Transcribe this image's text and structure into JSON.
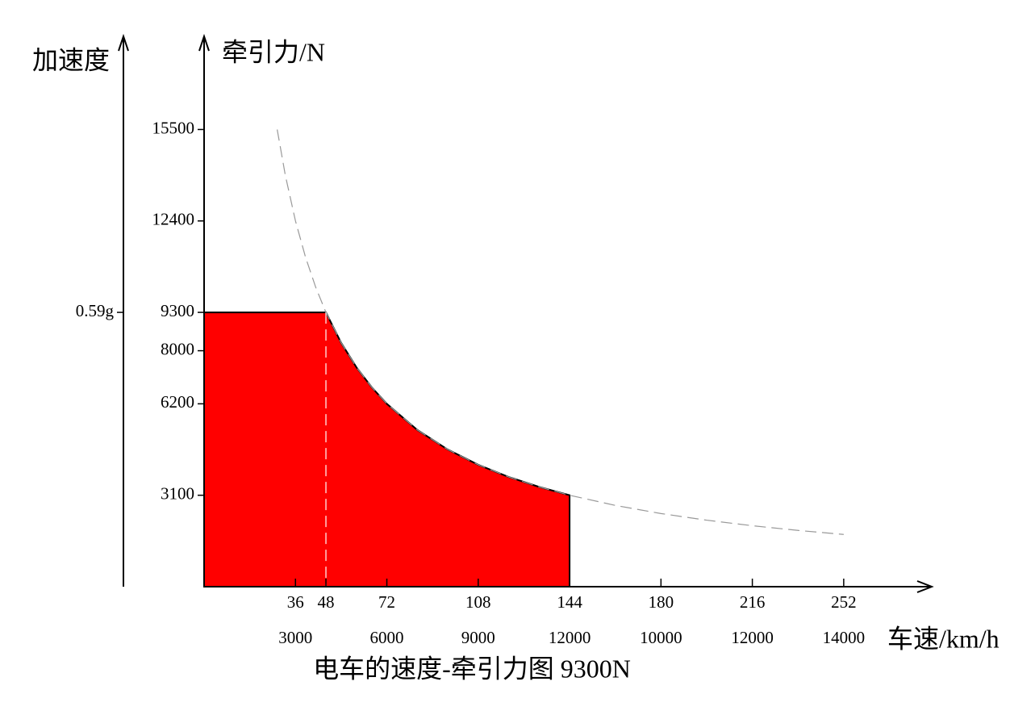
{
  "chart_data": {
    "type": "area",
    "title": "电车的速度-牵引力图 9300N",
    "x_label": "车速/km/h",
    "y_label": "牵引力/N",
    "y_left_label": "加速度",
    "y_left_ticks": [
      {
        "value": 9300,
        "label": "0.59g"
      }
    ],
    "xlim": [
      0,
      287
    ],
    "ylim": [
      0,
      18700
    ],
    "xticks": [
      36,
      48,
      72,
      108,
      144,
      180,
      216,
      252
    ],
    "xtick_sublabels": [
      3000,
      null,
      6000,
      9000,
      12000,
      10000,
      12000,
      14000
    ],
    "yticks": [
      3100,
      6200,
      8000,
      9300,
      12400,
      15500
    ],
    "area": {
      "color": "#ff0000",
      "x": [
        0,
        48,
        54,
        60,
        66,
        72,
        84,
        96,
        108,
        120,
        132,
        144
      ],
      "values": [
        9300,
        9300,
        8267,
        7440,
        6764,
        6200,
        5314,
        4650,
        4133,
        3720,
        3382,
        3100
      ]
    },
    "curve": {
      "color": "#999999",
      "dashed": true,
      "x": [
        28.8,
        32,
        36,
        40,
        44,
        48,
        54,
        60,
        66,
        72,
        84,
        96,
        108,
        120,
        132,
        144,
        162,
        180,
        198,
        216,
        234,
        252
      ],
      "values": [
        15500,
        13950,
        12400,
        11160,
        10145,
        9300,
        8267,
        7440,
        6764,
        6200,
        5314,
        4650,
        4133,
        3720,
        3382,
        3100,
        2756,
        2480,
        2255,
        2067,
        1908,
        1771
      ]
    },
    "vline": {
      "x": 48,
      "dashed": true
    }
  }
}
